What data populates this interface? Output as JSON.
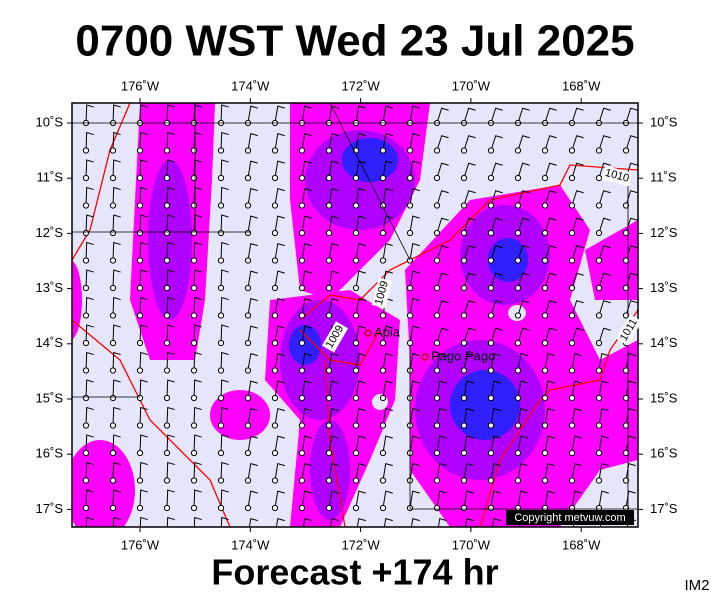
{
  "title": "0700 WST Wed 23 Jul 2025",
  "map": {
    "lon_labels": [
      "176˚W",
      "174˚W",
      "172˚W",
      "170˚W",
      "168˚W"
    ],
    "lat_labels": [
      "10˚S",
      "11˚S",
      "12˚S",
      "13˚S",
      "14˚S",
      "15˚S",
      "16˚S",
      "17˚S"
    ],
    "places": [
      "Apia",
      "Pago Pago"
    ],
    "isobar_labels": [
      "1009",
      "1009",
      "1010",
      "1011"
    ],
    "copyright": "Copyright metvuw.com"
  },
  "footer": {
    "forecast": "Forecast +174 hr",
    "model": "IM2"
  }
}
